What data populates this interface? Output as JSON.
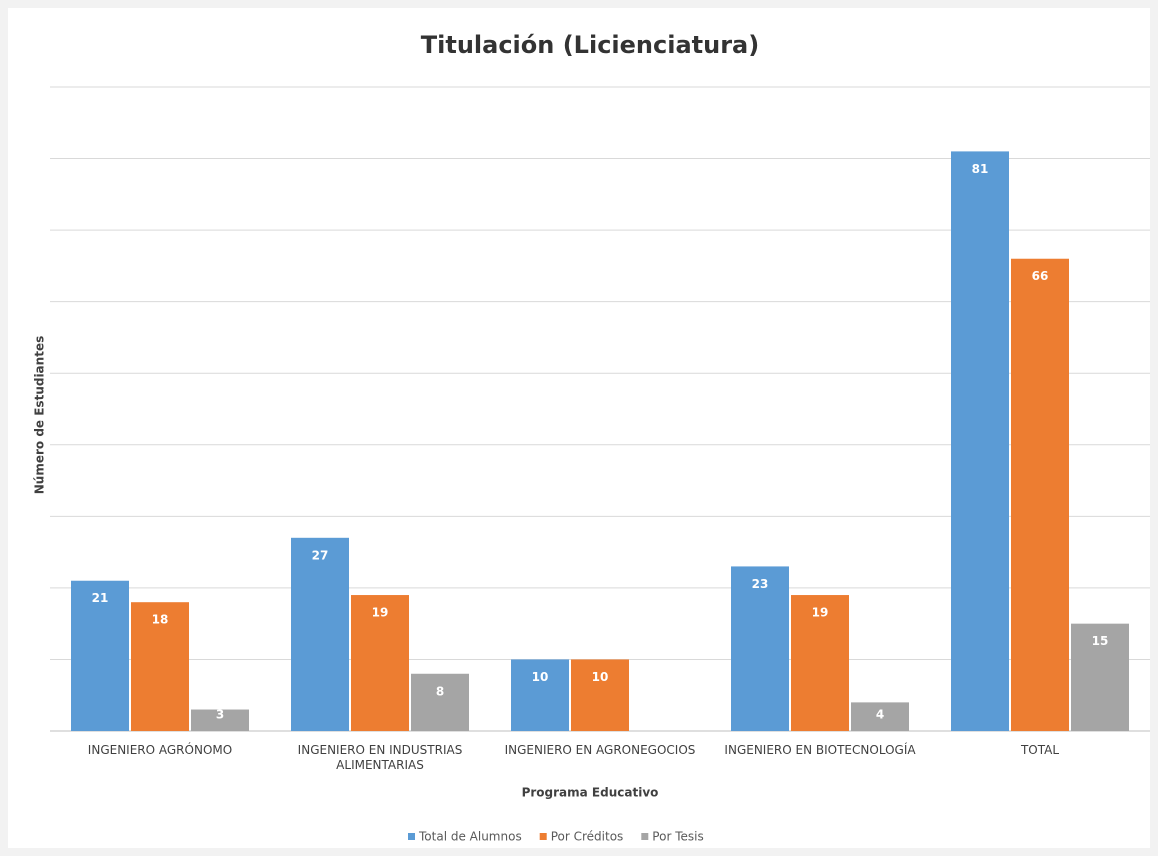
{
  "chart_data": {
    "type": "bar",
    "title": "Titulación (Licienciatura)",
    "x_label": "Programa Educativo",
    "y_label": "Número de Estudiantes",
    "categories": [
      "INGENIERO AGRÓNOMO",
      "INGENIERO EN INDUSTRIAS ALIMENTARIAS",
      "INGENIERO EN AGRONEGOCIOS",
      "INGENIERO EN BIOTECNOLOGÍA",
      "TOTAL"
    ],
    "series": [
      {
        "name": "Total de Alumnos",
        "color": "#5b9bd5",
        "values": [
          21,
          27,
          10,
          23,
          81
        ]
      },
      {
        "name": "Por Créditos",
        "color": "#ed7d31",
        "values": [
          18,
          19,
          10,
          19,
          66
        ]
      },
      {
        "name": "Por Tesis",
        "color": "#a5a5a5",
        "values": [
          3,
          8,
          0,
          4,
          15
        ]
      }
    ],
    "ylim": [
      0,
      90
    ],
    "yticks": [
      0,
      10,
      20,
      30,
      40,
      50,
      60,
      70,
      80,
      90
    ],
    "grid": true,
    "legend": "bottom"
  }
}
